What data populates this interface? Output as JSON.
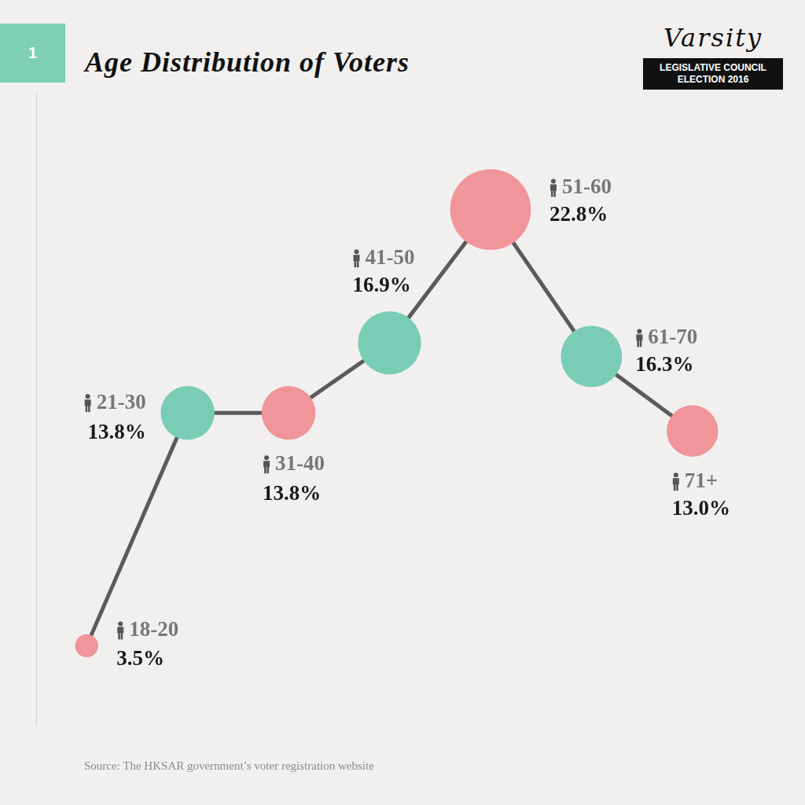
{
  "chart_data": {
    "type": "line",
    "title": "Age Distribution of Voters",
    "badge": "1",
    "logo": {
      "name": "Varsity",
      "banner": [
        "LEGISLATIVE COUNCIL",
        "ELECTION 2016"
      ]
    },
    "source": "Source: The HKSAR government’s voter registration website",
    "categories": [
      "18-20",
      "21-30",
      "31-40",
      "41-50",
      "51-60",
      "61-70",
      "71+"
    ],
    "values": [
      3.5,
      13.8,
      13.8,
      16.9,
      22.8,
      16.3,
      13.0
    ],
    "value_labels": [
      "3.5%",
      "13.8%",
      "13.8%",
      "16.9%",
      "22.8%",
      "16.3%",
      "13.0%"
    ],
    "color": "#5b5b5b",
    "colors": [
      "#f0959a",
      "#78cdb4",
      "#f0959a",
      "#78cdb4",
      "#f0959a",
      "#78cdb4",
      "#f0959a"
    ],
    "marker": "circle",
    "ylim": [
      0,
      28
    ],
    "grid": false,
    "tick_labels": false,
    "data_labels": true
  }
}
